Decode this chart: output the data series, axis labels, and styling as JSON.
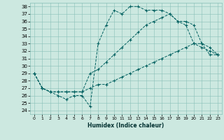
{
  "xlabel": "Humidex (Indice chaleur)",
  "ylabel": "",
  "xlim": [
    -0.5,
    23.5
  ],
  "ylim": [
    23.5,
    38.5
  ],
  "xticks": [
    0,
    1,
    2,
    3,
    4,
    5,
    6,
    7,
    8,
    9,
    10,
    11,
    12,
    13,
    14,
    15,
    16,
    17,
    18,
    19,
    20,
    21,
    22,
    23
  ],
  "yticks": [
    24,
    25,
    26,
    27,
    28,
    29,
    30,
    31,
    32,
    33,
    34,
    35,
    36,
    37,
    38
  ],
  "bg_color": "#cce8e0",
  "grid_color": "#88c0b8",
  "line_color": "#006060",
  "line1_x": [
    0,
    1,
    2,
    3,
    4,
    5,
    6,
    7,
    8,
    9,
    10,
    11,
    12,
    13,
    14,
    15,
    16,
    17,
    18,
    19,
    20,
    21,
    22,
    23
  ],
  "line1_y": [
    29.0,
    27.0,
    26.5,
    26.0,
    25.5,
    26.0,
    26.0,
    24.5,
    33.0,
    35.5,
    37.5,
    37.0,
    38.0,
    38.0,
    37.5,
    37.5,
    37.5,
    37.0,
    36.0,
    35.5,
    33.0,
    32.5,
    32.0,
    31.5
  ],
  "line2_x": [
    0,
    1,
    2,
    3,
    4,
    5,
    6,
    7,
    8,
    9,
    10,
    11,
    12,
    13,
    14,
    15,
    16,
    17,
    18,
    19,
    20,
    21,
    22,
    23
  ],
  "line2_y": [
    29.0,
    27.0,
    26.5,
    26.5,
    26.5,
    26.5,
    26.5,
    29.0,
    29.5,
    30.5,
    31.5,
    32.5,
    33.5,
    34.5,
    35.5,
    36.0,
    36.5,
    37.0,
    36.0,
    36.0,
    35.5,
    33.0,
    32.5,
    31.5
  ],
  "line3_x": [
    0,
    1,
    2,
    3,
    4,
    5,
    6,
    7,
    8,
    9,
    10,
    11,
    12,
    13,
    14,
    15,
    16,
    17,
    18,
    19,
    20,
    21,
    22,
    23
  ],
  "line3_y": [
    29.0,
    27.0,
    26.5,
    26.5,
    26.5,
    26.5,
    26.5,
    27.0,
    27.5,
    27.5,
    28.0,
    28.5,
    29.0,
    29.5,
    30.0,
    30.5,
    31.0,
    31.5,
    32.0,
    32.5,
    33.0,
    33.0,
    31.5,
    31.5
  ]
}
